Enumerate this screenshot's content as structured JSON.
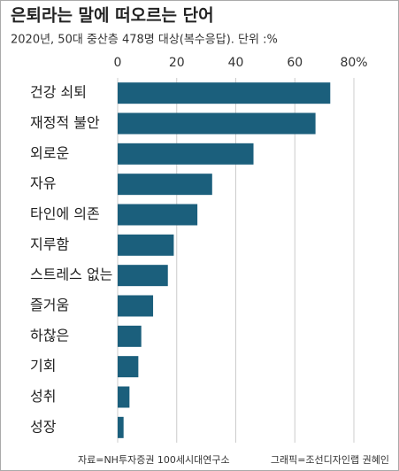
{
  "chart_data": {
    "type": "barh",
    "title": "은퇴라는 말에 떠오르는 단어",
    "subtitle": "2020년, 50대 중산층 478명 대상(복수응답). 단위 :%",
    "source": "자료=NH투자증권 100세시대연구소",
    "credit": "그래픽=조선디자인랩 권혜인",
    "categories": [
      "건강 쇠퇴",
      "재정적 불안",
      "외로운",
      "자유",
      "타인에 의존",
      "지루함",
      "스트레스 없는",
      "즐거움",
      "하찮은",
      "기회",
      "성취",
      "성장"
    ],
    "values": [
      72,
      67,
      46,
      32,
      27,
      19,
      17,
      12,
      8,
      7,
      4,
      2
    ],
    "color": "#1b5f7c",
    "xlim": [
      0,
      80
    ],
    "xticks": [
      0,
      20,
      40,
      60,
      {
        "value": 80,
        "label": "80%"
      }
    ],
    "grid": true
  }
}
